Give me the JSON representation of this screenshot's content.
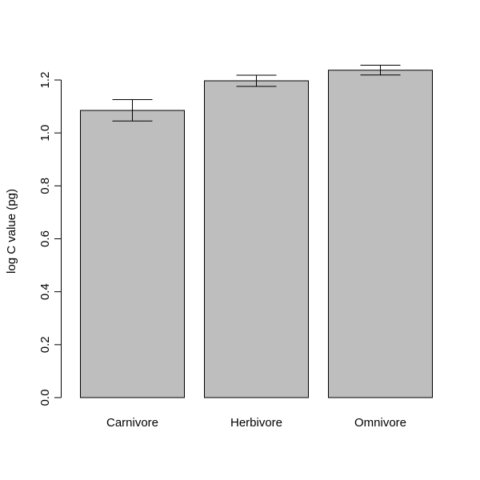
{
  "chart_data": {
    "type": "bar",
    "title": "",
    "xlabel": "",
    "ylabel": "log C value (pg)",
    "categories": [
      "Carnivore",
      "Herbivore",
      "Omnivore"
    ],
    "values": [
      1.085,
      1.197,
      1.237
    ],
    "error_low": [
      1.045,
      1.176,
      1.219
    ],
    "error_high": [
      1.126,
      1.218,
      1.256
    ],
    "ylim": [
      0,
      1.2
    ],
    "yticks": [
      0.0,
      0.2,
      0.4,
      0.6,
      0.8,
      1.0,
      1.2
    ],
    "ytick_labels": [
      "0.0",
      "0.2",
      "0.4",
      "0.6",
      "0.8",
      "1.0",
      "1.2"
    ],
    "grid": false,
    "colors": {
      "bar_fill": "#bebebe",
      "bar_stroke": "#000000",
      "axis": "#000000"
    }
  }
}
